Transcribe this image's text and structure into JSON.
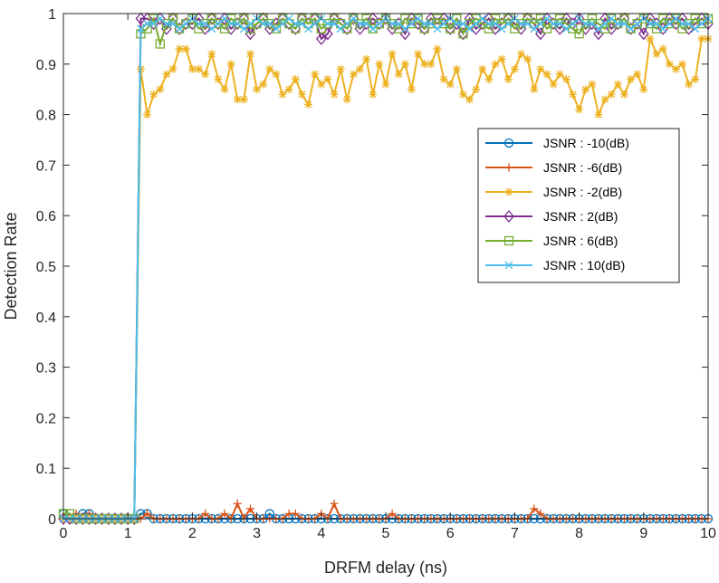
{
  "chart_data": {
    "type": "line",
    "title": "",
    "xlabel": "DRFM delay (ns)",
    "ylabel": "Detection Rate",
    "xlim": [
      0,
      10
    ],
    "ylim": [
      0,
      1
    ],
    "xticks": [
      "0",
      "1",
      "2",
      "3",
      "4",
      "5",
      "6",
      "7",
      "8",
      "9",
      "10"
    ],
    "yticks": [
      "0",
      "0.1",
      "0.2",
      "0.3",
      "0.4",
      "0.5",
      "0.6",
      "0.7",
      "0.8",
      "0.9",
      "1"
    ],
    "grid": false,
    "legend_location": "right, upper-middle",
    "x_step": 0.1,
    "x_range": [
      0,
      10
    ],
    "series": [
      {
        "name": "JSNR : -10(dB)",
        "color": "#0072BD",
        "marker": "circle",
        "values": [
          0.01,
          0.0,
          0.0,
          0.01,
          0.01,
          0.0,
          0.0,
          0.0,
          0.0,
          0.0,
          0.0,
          0.0,
          0.01,
          0.01,
          0.0,
          0.0,
          0.0,
          0.0,
          0.0,
          0.0,
          0.0,
          0.0,
          0.0,
          0.0,
          0.0,
          0.0,
          0.0,
          0.0,
          0.0,
          0.0,
          0.0,
          0.0,
          0.01,
          0.0,
          0.0,
          0.0,
          0.0,
          0.0,
          0.0,
          0.0,
          0.0,
          0.0,
          0.0,
          0.0,
          0.0,
          0.0,
          0.0,
          0.0,
          0.0,
          0.0,
          0.0,
          0.0,
          0.0,
          0.0,
          0.0,
          0.0,
          0.0,
          0.0,
          0.0,
          0.0,
          0.0,
          0.0,
          0.0,
          0.0,
          0.0,
          0.0,
          0.0,
          0.0,
          0.0,
          0.0,
          0.0,
          0.0,
          0.0,
          0.0,
          0.0,
          0.0,
          0.0,
          0.0,
          0.0,
          0.0,
          0.0,
          0.0,
          0.0,
          0.0,
          0.0,
          0.0,
          0.0,
          0.0,
          0.0,
          0.0,
          0.0,
          0.0,
          0.0,
          0.0,
          0.0,
          0.0,
          0.0,
          0.0,
          0.0,
          0.0,
          0.0
        ]
      },
      {
        "name": "JSNR : -6(dB)",
        "color": "#D95319",
        "marker": "plus",
        "values": [
          0.0,
          0.0,
          0.01,
          0.0,
          0.01,
          0.0,
          0.0,
          0.0,
          0.0,
          0.0,
          0.0,
          0.0,
          0.0,
          0.01,
          0.0,
          0.0,
          0.0,
          0.0,
          0.0,
          0.0,
          0.0,
          0.0,
          0.01,
          0.0,
          0.0,
          0.01,
          0.0,
          0.03,
          0.0,
          0.02,
          0.0,
          0.0,
          0.0,
          0.0,
          0.0,
          0.01,
          0.01,
          0.0,
          0.0,
          0.0,
          0.01,
          0.0,
          0.03,
          0.0,
          0.0,
          0.0,
          0.0,
          0.0,
          0.0,
          0.0,
          0.0,
          0.01,
          0.0,
          0.0,
          0.0,
          0.0,
          0.0,
          0.0,
          0.0,
          0.0,
          0.0,
          0.0,
          0.0,
          0.0,
          0.0,
          0.0,
          0.0,
          0.0,
          0.0,
          0.0,
          0.0,
          0.0,
          0.0,
          0.02,
          0.01,
          0.0,
          0.0,
          0.0,
          0.0,
          0.0,
          0.0,
          0.0,
          0.0,
          0.0,
          0.0,
          0.0,
          0.0,
          0.0,
          0.0,
          0.0,
          0.0,
          0.0,
          0.0,
          0.0,
          0.0,
          0.0,
          0.0,
          0.0,
          0.0,
          0.0,
          0.0
        ]
      },
      {
        "name": "JSNR : -2(dB)",
        "color": "#EDB120",
        "marker": "asterisk",
        "values": [
          0.0,
          0.0,
          0.0,
          0.0,
          0.0,
          0.0,
          0.0,
          0.0,
          0.0,
          0.0,
          0.0,
          0.0,
          0.89,
          0.8,
          0.84,
          0.85,
          0.88,
          0.89,
          0.93,
          0.93,
          0.89,
          0.89,
          0.88,
          0.92,
          0.87,
          0.85,
          0.9,
          0.83,
          0.83,
          0.92,
          0.85,
          0.86,
          0.89,
          0.88,
          0.84,
          0.85,
          0.87,
          0.84,
          0.82,
          0.88,
          0.86,
          0.87,
          0.84,
          0.89,
          0.83,
          0.88,
          0.89,
          0.91,
          0.84,
          0.9,
          0.86,
          0.92,
          0.88,
          0.9,
          0.85,
          0.92,
          0.9,
          0.9,
          0.93,
          0.87,
          0.86,
          0.89,
          0.84,
          0.83,
          0.85,
          0.89,
          0.87,
          0.9,
          0.91,
          0.87,
          0.89,
          0.92,
          0.91,
          0.85,
          0.89,
          0.88,
          0.86,
          0.88,
          0.87,
          0.84,
          0.81,
          0.85,
          0.86,
          0.8,
          0.83,
          0.84,
          0.86,
          0.84,
          0.87,
          0.88,
          0.85,
          0.95,
          0.92,
          0.93,
          0.9,
          0.89,
          0.9,
          0.86,
          0.87,
          0.95,
          0.95
        ]
      },
      {
        "name": "JSNR : 2(dB)",
        "color": "#7E2F8E",
        "marker": "diamond",
        "values": [
          0.0,
          0.0,
          0.0,
          0.0,
          0.0,
          0.0,
          0.0,
          0.0,
          0.0,
          0.0,
          0.0,
          0.0,
          0.99,
          0.99,
          0.98,
          0.99,
          0.97,
          0.99,
          0.97,
          0.98,
          0.98,
          0.99,
          0.97,
          0.99,
          0.98,
          0.99,
          0.97,
          0.98,
          0.99,
          0.96,
          0.98,
          0.99,
          0.97,
          0.98,
          0.99,
          0.98,
          0.97,
          0.99,
          0.98,
          0.99,
          0.95,
          0.96,
          0.99,
          0.98,
          0.97,
          0.99,
          0.97,
          0.98,
          0.99,
          0.98,
          0.99,
          0.97,
          0.98,
          0.96,
          0.99,
          0.98,
          0.97,
          0.99,
          0.98,
          0.99,
          0.97,
          0.98,
          0.96,
          0.99,
          0.97,
          0.98,
          0.99,
          0.97,
          0.98,
          0.99,
          0.98,
          0.97,
          0.99,
          0.98,
          0.96,
          0.99,
          0.98,
          0.97,
          0.99,
          0.98,
          0.99,
          0.97,
          0.98,
          0.96,
          0.99,
          0.97,
          0.98,
          0.99,
          0.97,
          0.98,
          0.96,
          0.99,
          0.98,
          0.97,
          0.99,
          0.98,
          0.99,
          0.97,
          0.98,
          0.99,
          0.98
        ]
      },
      {
        "name": "JSNR : 6(dB)",
        "color": "#77AC30",
        "marker": "square",
        "values": [
          0.01,
          0.01,
          0.0,
          0.0,
          0.0,
          0.0,
          0.0,
          0.0,
          0.0,
          0.0,
          0.0,
          0.0,
          0.96,
          0.97,
          0.99,
          0.94,
          0.98,
          0.99,
          0.97,
          0.98,
          0.99,
          0.97,
          0.98,
          0.99,
          0.98,
          0.97,
          0.99,
          0.98,
          0.99,
          0.97,
          0.98,
          0.99,
          0.98,
          0.97,
          0.99,
          0.98,
          0.97,
          0.99,
          0.98,
          0.99,
          0.97,
          0.98,
          0.99,
          0.98,
          0.97,
          0.99,
          0.98,
          0.99,
          0.97,
          0.98,
          0.99,
          0.98,
          0.97,
          0.99,
          0.98,
          0.99,
          0.97,
          0.98,
          0.99,
          0.98,
          0.97,
          0.99,
          0.96,
          0.98,
          0.99,
          0.98,
          0.97,
          0.99,
          0.98,
          0.99,
          0.97,
          0.98,
          0.99,
          0.98,
          0.99,
          0.97,
          0.98,
          0.99,
          0.98,
          0.97,
          0.96,
          0.98,
          0.99,
          0.98,
          0.97,
          0.99,
          0.98,
          0.99,
          0.97,
          0.98,
          0.99,
          0.98,
          0.97,
          0.99,
          0.98,
          0.99,
          0.97,
          0.98,
          0.99,
          0.98,
          0.99
        ]
      },
      {
        "name": "JSNR : 10(dB)",
        "color": "#4DBEEE",
        "marker": "cross",
        "values": [
          0.0,
          0.0,
          0.0,
          0.0,
          0.0,
          0.0,
          0.0,
          0.0,
          0.0,
          0.0,
          0.0,
          0.0,
          0.97,
          0.98,
          0.98,
          0.99,
          0.98,
          0.98,
          0.97,
          0.98,
          0.99,
          0.98,
          0.98,
          0.97,
          0.98,
          0.99,
          0.98,
          0.98,
          0.97,
          0.98,
          0.99,
          0.98,
          0.98,
          0.97,
          0.98,
          0.99,
          0.98,
          0.98,
          0.97,
          0.98,
          0.99,
          0.98,
          0.98,
          0.97,
          0.98,
          0.99,
          0.98,
          0.98,
          0.97,
          0.98,
          0.99,
          0.98,
          0.98,
          0.97,
          0.98,
          0.99,
          0.98,
          0.98,
          0.97,
          0.98,
          0.99,
          0.98,
          0.98,
          0.97,
          0.98,
          0.99,
          0.98,
          0.98,
          0.97,
          0.98,
          0.99,
          0.98,
          0.98,
          0.97,
          0.98,
          0.99,
          0.98,
          0.98,
          0.97,
          0.98,
          0.99,
          0.98,
          0.98,
          0.97,
          0.98,
          0.99,
          0.98,
          0.98,
          0.97,
          0.98,
          0.99,
          0.98,
          0.98,
          0.97,
          0.98,
          0.99,
          0.98,
          0.98,
          0.97,
          0.98,
          0.99
        ]
      }
    ]
  }
}
